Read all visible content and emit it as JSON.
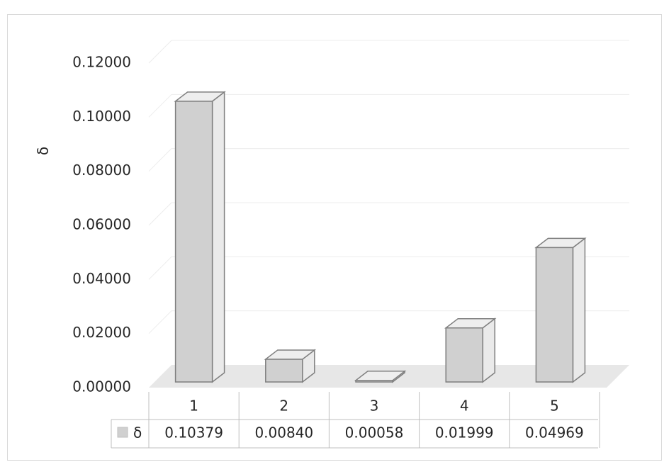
{
  "chart_data": {
    "type": "bar3d",
    "y_label": "δ",
    "categories": [
      "1",
      "2",
      "3",
      "4",
      "5"
    ],
    "series": [
      {
        "name": "δ",
        "color": "#d0d0d0",
        "values": [
          0.10379,
          0.0084,
          0.00058,
          0.01999,
          0.04969
        ],
        "value_labels": [
          "0.10379",
          "0.00840",
          "0.00058",
          "0.01999",
          "0.04969"
        ]
      }
    ],
    "ylim": [
      0,
      0.12
    ],
    "yticks": [
      {
        "value": 0,
        "label": "0.00000"
      },
      {
        "value": 0.02,
        "label": "0.02000"
      },
      {
        "value": 0.04,
        "label": "0.04000"
      },
      {
        "value": 0.06,
        "label": "0.06000"
      },
      {
        "value": 0.08,
        "label": "0.08000"
      },
      {
        "value": 0.1,
        "label": "0.10000"
      },
      {
        "value": 0.12,
        "label": "0.12000"
      }
    ],
    "grid": true,
    "data_table": true
  }
}
